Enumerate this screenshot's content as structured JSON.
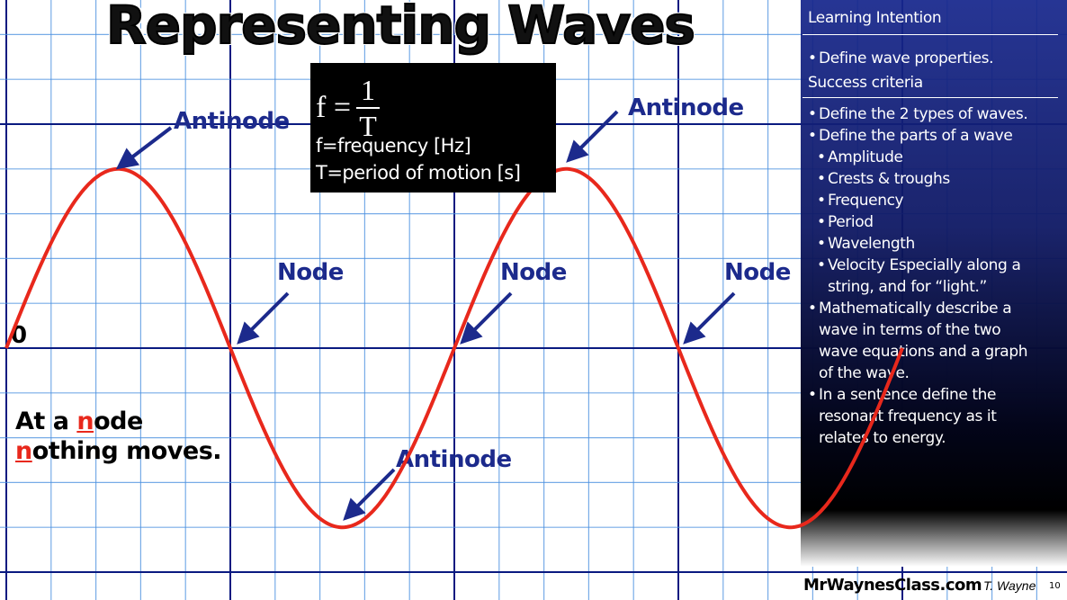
{
  "title": "Representing Waves",
  "formula": {
    "lhs": "f =",
    "numerator": "1",
    "denominator": "T",
    "definitions": [
      "f=frequency [Hz]",
      "T=period of motion [s]"
    ]
  },
  "wave_labels": {
    "antinode_1": "Antinode",
    "antinode_2": "Antinode",
    "antinode_3": "Antinode",
    "node_1": "Node",
    "node_2": "Node",
    "node_3": "Node",
    "zero": "0"
  },
  "note": {
    "line1_pre": "At a ",
    "line1_highlight": "n",
    "line1_post": "ode",
    "line2_highlight": "n",
    "line2_post": "othing moves."
  },
  "panel": {
    "learning_heading": "Learning Intention",
    "learning_items": [
      "Define wave properties."
    ],
    "success_heading": "Success criteria",
    "success_items": [
      {
        "text": "Define the 2 types of waves.",
        "level": 1
      },
      {
        "text": "Define the parts of a wave",
        "level": 1
      },
      {
        "text": "Amplitude",
        "level": 2
      },
      {
        "text": "Crests & troughs",
        "level": 2
      },
      {
        "text": "Frequency",
        "level": 2
      },
      {
        "text": "Period",
        "level": 2
      },
      {
        "text": "Wavelength",
        "level": 2
      },
      {
        "text": "Velocity Especially along a",
        "cont": "string, and for “light.”",
        "level": 2
      },
      {
        "text": "Mathematically describe a",
        "cont": "wave in terms of the two|wave equations and a graph|of the wave.",
        "level": 1
      },
      {
        "text": "In a sentence define the",
        "cont": "resonant frequency as it|relates to energy.",
        "level": 1
      }
    ]
  },
  "footer": {
    "site": "MrWaynesClass.com",
    "author": "T. Wayne",
    "page": "10"
  },
  "colors": {
    "wave": "#e8281c",
    "label": "#1c2a8c",
    "grid_major": "#0a1a80",
    "grid_minor": "#4a90e0",
    "panel": "#16268c"
  },
  "icons": {
    "arrow": "arrow-pointer-icon"
  }
}
